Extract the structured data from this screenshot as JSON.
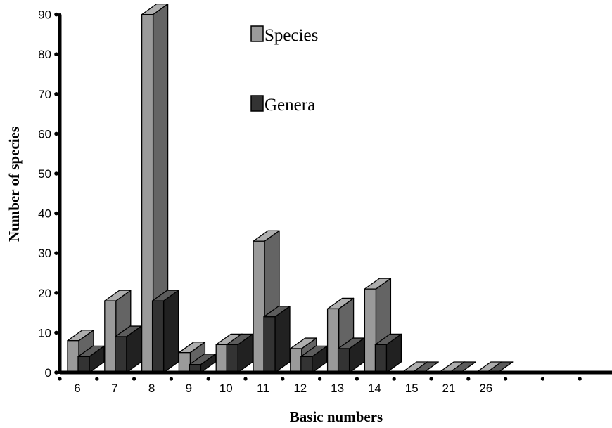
{
  "chart_data": {
    "type": "bar",
    "categories": [
      "6",
      "7",
      "8",
      "9",
      "10",
      "11",
      "12",
      "13",
      "14",
      "15",
      "21",
      "26"
    ],
    "series": [
      {
        "name": "Species",
        "values": [
          8,
          18,
          90,
          5,
          7,
          33,
          6,
          16,
          21,
          0,
          0,
          0
        ],
        "color": "#9a9a9a"
      },
      {
        "name": "Genera",
        "values": [
          4,
          9,
          18,
          2,
          7,
          14,
          4,
          6,
          7,
          0,
          0,
          0
        ],
        "color": "#333333"
      }
    ],
    "xlabel": "Basic numbers",
    "ylabel": "Number of species",
    "ylim": [
      0,
      90
    ],
    "yticks": [
      0,
      10,
      20,
      30,
      40,
      50,
      60,
      70,
      80,
      90
    ],
    "grid": false,
    "legend_position": "top-center",
    "style": "3d"
  }
}
